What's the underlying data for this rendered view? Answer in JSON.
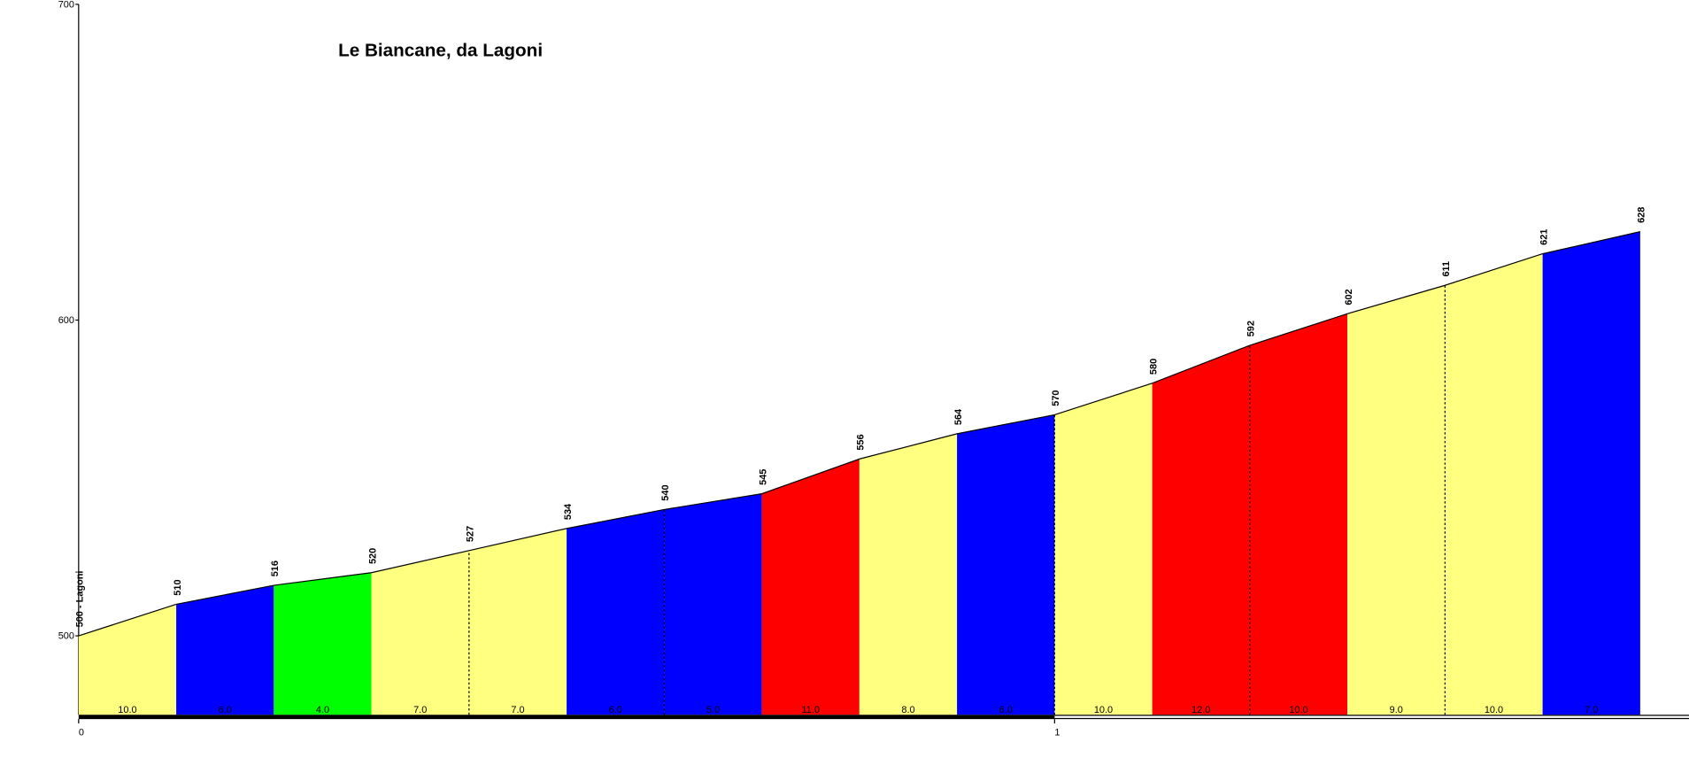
{
  "chart_data": {
    "type": "elevation-profile",
    "title": "Le Biancane, da Lagoni",
    "x": [
      0,
      0.1,
      0.2,
      0.3,
      0.4,
      0.5,
      0.6,
      0.7,
      0.8,
      0.9,
      1,
      1.1,
      1.2,
      1.3,
      1.4,
      1.5,
      1.6
    ],
    "values": [
      500,
      510,
      516,
      520,
      527,
      534,
      540,
      545,
      556,
      564,
      570,
      580,
      592,
      602,
      611,
      621,
      628
    ],
    "value_labels": [
      "500 - Lagoni",
      "510",
      "516",
      "520",
      "527",
      "534",
      "540",
      "545",
      "556",
      "564",
      "570",
      "580",
      "592",
      "602",
      "611",
      "621",
      "628"
    ],
    "segment_labels": [
      "10.0",
      "6.0",
      "4.0",
      "7.0",
      "7.0",
      "6.0",
      "5.0",
      "11.0",
      "8.0",
      "6.0",
      "10.0",
      "12.0",
      "10.0",
      "9.0",
      "10.0",
      "7.0"
    ],
    "segment_colors": [
      "#ffff80",
      "#0000ff",
      "#00ff00",
      "#ffff80",
      "#ffff80",
      "#0000ff",
      "#0000ff",
      "#ff0000",
      "#ffff80",
      "#0000ff",
      "#ffff80",
      "#ff0000",
      "#ff0000",
      "#ffff80",
      "#ffff80",
      "#0000ff"
    ],
    "xlim": [
      0,
      1.65
    ],
    "xticks": [
      0,
      1
    ],
    "ylim": [
      475,
      700
    ],
    "yticks": [
      500,
      600,
      700
    ]
  }
}
